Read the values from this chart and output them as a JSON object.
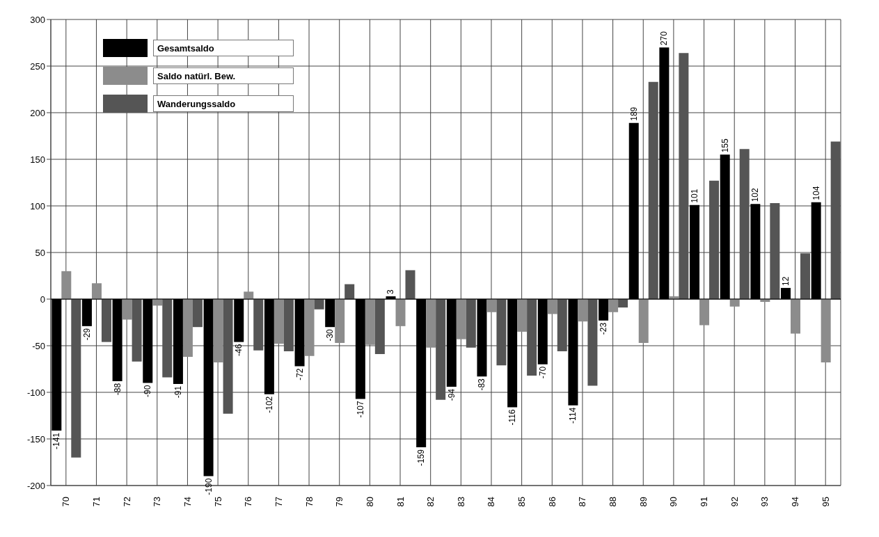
{
  "chart_data": {
    "type": "bar",
    "categories": [
      "70",
      "71",
      "72",
      "73",
      "74",
      "75",
      "76",
      "77",
      "78",
      "79",
      "80",
      "81",
      "82",
      "83",
      "84",
      "85",
      "86",
      "87",
      "88",
      "89",
      "90",
      "91",
      "92",
      "93",
      "94",
      "95"
    ],
    "series": [
      {
        "name": "Gesamtsaldo",
        "color": "#000000",
        "values": [
          -141,
          -29,
          -88,
          -90,
          -91,
          -190,
          -46,
          -102,
          -72,
          -30,
          -107,
          3,
          -159,
          -94,
          -83,
          -116,
          -70,
          -114,
          -23,
          189,
          270,
          101,
          155,
          102,
          12,
          104
        ],
        "value_labels": [
          "-141",
          "-29",
          "-88",
          "-90",
          "-91",
          "-190",
          "-46",
          "-102",
          "-72",
          "-30",
          "-107",
          "3",
          "-159",
          "-94",
          "-83",
          "-116",
          "-70",
          "-114",
          "-23",
          "189",
          "270",
          "101",
          "155",
          "102",
          "12",
          "104"
        ]
      },
      {
        "name": "Saldo natürl. Bew.",
        "color": "#8c8c8c",
        "values": [
          30,
          17,
          -22,
          -7,
          -62,
          -68,
          8,
          -48,
          -61,
          -47,
          -49,
          -29,
          -52,
          -43,
          -14,
          -35,
          -16,
          -24,
          -14,
          -47,
          3,
          -28,
          -8,
          -3,
          -37,
          -68
        ]
      },
      {
        "name": "Wanderungssaldo",
        "color": "#555555",
        "values": [
          -170,
          -46,
          -67,
          -84,
          -30,
          -123,
          -55,
          -56,
          -11,
          16,
          -59,
          31,
          -108,
          -52,
          -71,
          -82,
          -56,
          -93,
          -9,
          233,
          264,
          127,
          161,
          103,
          49,
          169
        ]
      }
    ],
    "ylim": [
      -200,
      300
    ],
    "yticks": [
      -200,
      -150,
      -100,
      -50,
      0,
      50,
      100,
      150,
      200,
      250,
      300
    ],
    "grid": true,
    "legend": "top left"
  }
}
